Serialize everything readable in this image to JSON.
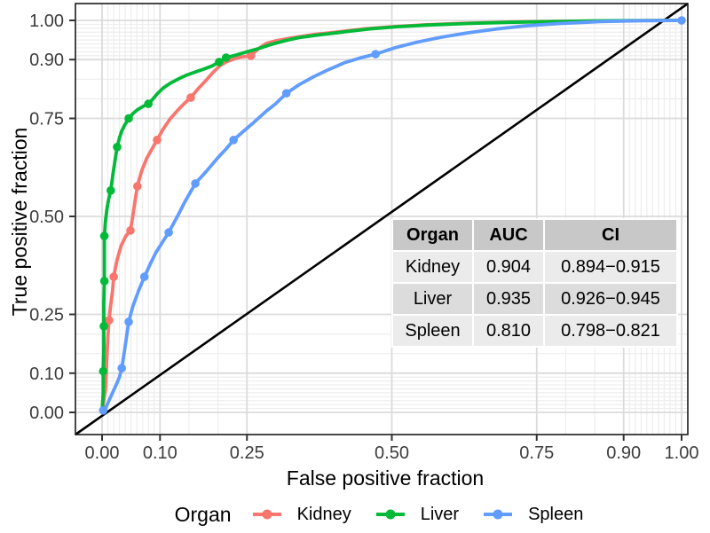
{
  "chart_data": {
    "type": "line",
    "title": "",
    "xlabel": "False positive fraction",
    "ylabel": "True positive fraction",
    "xlim": [
      0,
      1
    ],
    "ylim": [
      0,
      1
    ],
    "grid": true,
    "legend_position": "bottom",
    "major_breaks": [
      0,
      0.1,
      0.25,
      0.5,
      0.75,
      0.9,
      1.0
    ],
    "minor_breaks": [
      0.01,
      0.02,
      0.03,
      0.04,
      0.05,
      0.06,
      0.07,
      0.08,
      0.09,
      0.15,
      0.2,
      0.8,
      0.85,
      0.91,
      0.92,
      0.93,
      0.94,
      0.95,
      0.96,
      0.97,
      0.98,
      0.99
    ],
    "x_tick_labels": [
      "0.00",
      "0.10",
      "0.25",
      "0.50",
      "0.75",
      "0.90",
      "1.00"
    ],
    "y_tick_labels": [
      "0.00",
      "0.10",
      "0.25",
      "0.50",
      "0.75",
      "0.90",
      "1.00"
    ],
    "reference_line": {
      "label": "chance line y = x",
      "from": [
        0,
        0
      ],
      "to": [
        1,
        1
      ],
      "color": "#000000"
    },
    "series": [
      {
        "name": "Kidney",
        "color": "#F8766D",
        "auc": 0.904,
        "ci": "0.894−0.915",
        "points": [
          [
            0,
            0
          ],
          [
            0.006,
            0.06
          ],
          [
            0.008,
            0.13
          ],
          [
            0.01,
            0.19
          ],
          [
            0.012,
            0.235
          ],
          [
            0.015,
            0.275
          ],
          [
            0.018,
            0.31
          ],
          [
            0.02,
            0.346
          ],
          [
            0.026,
            0.39
          ],
          [
            0.033,
            0.425
          ],
          [
            0.041,
            0.45
          ],
          [
            0.049,
            0.464
          ],
          [
            0.053,
            0.5
          ],
          [
            0.057,
            0.54
          ],
          [
            0.061,
            0.577
          ],
          [
            0.068,
            0.615
          ],
          [
            0.077,
            0.648
          ],
          [
            0.086,
            0.672
          ],
          [
            0.095,
            0.695
          ],
          [
            0.105,
            0.722
          ],
          [
            0.117,
            0.748
          ],
          [
            0.13,
            0.77
          ],
          [
            0.142,
            0.788
          ],
          [
            0.153,
            0.803
          ],
          [
            0.166,
            0.826
          ],
          [
            0.18,
            0.848
          ],
          [
            0.192,
            0.868
          ],
          [
            0.203,
            0.884
          ],
          [
            0.214,
            0.894
          ],
          [
            0.225,
            0.9
          ],
          [
            0.238,
            0.906
          ],
          [
            0.257,
            0.91
          ],
          [
            0.27,
            0.928
          ],
          [
            0.283,
            0.941
          ],
          [
            0.3,
            0.948
          ],
          [
            0.33,
            0.956
          ],
          [
            0.37,
            0.965
          ],
          [
            0.41,
            0.971
          ],
          [
            0.45,
            0.978
          ],
          [
            0.5,
            0.984
          ],
          [
            0.56,
            0.989
          ],
          [
            0.63,
            0.993
          ],
          [
            0.71,
            0.996
          ],
          [
            0.8,
            0.998
          ],
          [
            0.9,
            0.999
          ],
          [
            1,
            1
          ]
        ],
        "markers": [
          [
            0.012,
            0.235
          ],
          [
            0.02,
            0.346
          ],
          [
            0.049,
            0.464
          ],
          [
            0.061,
            0.577
          ],
          [
            0.095,
            0.695
          ],
          [
            0.153,
            0.803
          ],
          [
            0.257,
            0.91
          ]
        ]
      },
      {
        "name": "Liver",
        "color": "#00BA38",
        "auc": 0.935,
        "ci": "0.926−0.945",
        "points": [
          [
            0,
            0
          ],
          [
            0.002,
            0.05
          ],
          [
            0.002,
            0.105
          ],
          [
            0.003,
            0.16
          ],
          [
            0.003,
            0.22
          ],
          [
            0.003,
            0.28
          ],
          [
            0.004,
            0.335
          ],
          [
            0.004,
            0.39
          ],
          [
            0.004,
            0.45
          ],
          [
            0.006,
            0.49
          ],
          [
            0.009,
            0.525
          ],
          [
            0.012,
            0.548
          ],
          [
            0.015,
            0.566
          ],
          [
            0.019,
            0.61
          ],
          [
            0.023,
            0.648
          ],
          [
            0.026,
            0.677
          ],
          [
            0.03,
            0.7
          ],
          [
            0.034,
            0.718
          ],
          [
            0.039,
            0.733
          ],
          [
            0.046,
            0.75
          ],
          [
            0.053,
            0.762
          ],
          [
            0.061,
            0.772
          ],
          [
            0.07,
            0.78
          ],
          [
            0.08,
            0.787
          ],
          [
            0.088,
            0.8
          ],
          [
            0.096,
            0.814
          ],
          [
            0.106,
            0.828
          ],
          [
            0.118,
            0.84
          ],
          [
            0.132,
            0.851
          ],
          [
            0.147,
            0.861
          ],
          [
            0.162,
            0.869
          ],
          [
            0.176,
            0.876
          ],
          [
            0.19,
            0.884
          ],
          [
            0.202,
            0.894
          ],
          [
            0.214,
            0.905
          ],
          [
            0.23,
            0.911
          ],
          [
            0.25,
            0.92
          ],
          [
            0.27,
            0.928
          ],
          [
            0.29,
            0.938
          ],
          [
            0.315,
            0.948
          ],
          [
            0.34,
            0.956
          ],
          [
            0.38,
            0.964
          ],
          [
            0.42,
            0.971
          ],
          [
            0.46,
            0.978
          ],
          [
            0.51,
            0.984
          ],
          [
            0.56,
            0.988
          ],
          [
            0.63,
            0.992
          ],
          [
            0.7,
            0.995
          ],
          [
            0.78,
            0.997
          ],
          [
            0.87,
            0.999
          ],
          [
            1,
            1
          ]
        ],
        "markers": [
          [
            0.002,
            0.105
          ],
          [
            0.003,
            0.22
          ],
          [
            0.004,
            0.335
          ],
          [
            0.004,
            0.45
          ],
          [
            0.015,
            0.566
          ],
          [
            0.026,
            0.677
          ],
          [
            0.046,
            0.75
          ],
          [
            0.08,
            0.787
          ],
          [
            0.202,
            0.894
          ],
          [
            0.214,
            0.905
          ]
        ]
      },
      {
        "name": "Spleen",
        "color": "#619CFF",
        "auc": 0.81,
        "ci": "0.798−0.821",
        "points": [
          [
            0,
            0.005
          ],
          [
            0.006,
            0.01
          ],
          [
            0.012,
            0.03
          ],
          [
            0.018,
            0.05
          ],
          [
            0.025,
            0.072
          ],
          [
            0.03,
            0.09
          ],
          [
            0.034,
            0.113
          ],
          [
            0.038,
            0.15
          ],
          [
            0.042,
            0.19
          ],
          [
            0.046,
            0.231
          ],
          [
            0.053,
            0.27
          ],
          [
            0.063,
            0.31
          ],
          [
            0.073,
            0.346
          ],
          [
            0.083,
            0.378
          ],
          [
            0.093,
            0.408
          ],
          [
            0.104,
            0.434
          ],
          [
            0.115,
            0.459
          ],
          [
            0.129,
            0.497
          ],
          [
            0.144,
            0.54
          ],
          [
            0.161,
            0.584
          ],
          [
            0.18,
            0.615
          ],
          [
            0.2,
            0.65
          ],
          [
            0.214,
            0.672
          ],
          [
            0.227,
            0.695
          ],
          [
            0.244,
            0.717
          ],
          [
            0.262,
            0.74
          ],
          [
            0.283,
            0.768
          ],
          [
            0.3,
            0.788
          ],
          [
            0.318,
            0.814
          ],
          [
            0.34,
            0.836
          ],
          [
            0.365,
            0.856
          ],
          [
            0.39,
            0.874
          ],
          [
            0.42,
            0.893
          ],
          [
            0.445,
            0.904
          ],
          [
            0.472,
            0.914
          ],
          [
            0.505,
            0.93
          ],
          [
            0.545,
            0.945
          ],
          [
            0.585,
            0.957
          ],
          [
            0.63,
            0.968
          ],
          [
            0.68,
            0.978
          ],
          [
            0.73,
            0.986
          ],
          [
            0.79,
            0.992
          ],
          [
            0.86,
            0.997
          ],
          [
            0.93,
            0.999
          ],
          [
            1,
            1
          ]
        ],
        "markers": [
          [
            0.002,
            0.005
          ],
          [
            0.034,
            0.113
          ],
          [
            0.046,
            0.231
          ],
          [
            0.073,
            0.346
          ],
          [
            0.115,
            0.459
          ],
          [
            0.161,
            0.584
          ],
          [
            0.227,
            0.695
          ],
          [
            0.318,
            0.814
          ],
          [
            0.472,
            0.914
          ],
          [
            1,
            1
          ]
        ]
      }
    ]
  },
  "inset_table": {
    "headers": [
      "Organ",
      "AUC",
      "CI"
    ],
    "rows": [
      [
        "Kidney",
        "0.904",
        "0.894−0.915"
      ],
      [
        "Liver",
        "0.935",
        "0.926−0.945"
      ],
      [
        "Spleen",
        "0.810",
        "0.798−0.821"
      ]
    ],
    "header_bg": "#c8c8c8",
    "row_bg_odd": "#ebebeb",
    "row_bg_even": "#dcdcdc"
  },
  "legend": {
    "title": "Organ",
    "items": [
      {
        "label": "Kidney",
        "color": "#F8766D"
      },
      {
        "label": "Liver",
        "color": "#00BA38"
      },
      {
        "label": "Spleen",
        "color": "#619CFF"
      }
    ]
  },
  "style_colors": {
    "panel_background": "#ffffff",
    "panel_border": "#1a1a1a",
    "grid_major": "#dbdbdb",
    "grid_minor": "#ededed",
    "tick_label": "#3c3c3c"
  }
}
